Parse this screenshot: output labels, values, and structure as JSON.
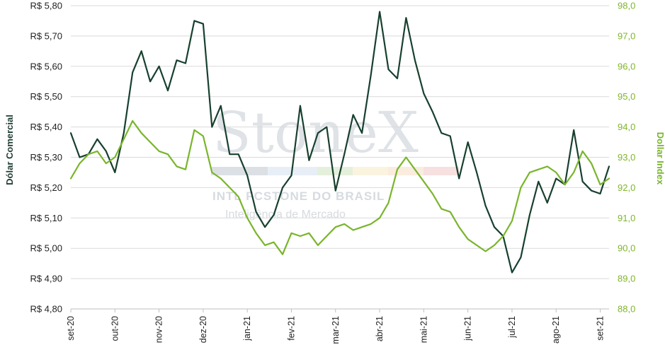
{
  "chart_data": {
    "type": "line",
    "xlabel": "",
    "x_ticks": [
      "set-20",
      "out-20",
      "nov-20",
      "dez-20",
      "jan-21",
      "fev-21",
      "mar-21",
      "abr-21",
      "mai-21",
      "jun-21",
      "jul-21",
      "ago-21",
      "set-21"
    ],
    "left_axis": {
      "label": "Dólar Comercial",
      "range": [
        4.8,
        5.8
      ],
      "tick_labels": [
        "R$ 4,80",
        "R$ 4,90",
        "R$ 5,00",
        "R$ 5,10",
        "R$ 5,20",
        "R$ 5,30",
        "R$ 5,40",
        "R$ 5,50",
        "R$ 5,60",
        "R$ 5,70",
        "R$ 5,80"
      ]
    },
    "right_axis": {
      "label": "Dollar Index",
      "range": [
        88.0,
        98.0
      ],
      "tick_labels": [
        "88,0",
        "89,0",
        "90,0",
        "91,0",
        "92,0",
        "93,0",
        "94,0",
        "95,0",
        "96,0",
        "97,0",
        "98,0"
      ]
    },
    "series": [
      {
        "name": "Dólar Comercial",
        "axis": "left",
        "color": "#17402f",
        "x": [
          0,
          0.2,
          0.4,
          0.6,
          0.8,
          1,
          1.2,
          1.4,
          1.6,
          1.8,
          2,
          2.2,
          2.4,
          2.6,
          2.8,
          3,
          3.2,
          3.4,
          3.6,
          3.8,
          4,
          4.2,
          4.4,
          4.6,
          4.8,
          5,
          5.2,
          5.4,
          5.6,
          5.8,
          6,
          6.2,
          6.4,
          6.6,
          6.8,
          7,
          7.2,
          7.4,
          7.6,
          7.8,
          8,
          8.2,
          8.4,
          8.6,
          8.8,
          9,
          9.2,
          9.4,
          9.6,
          9.8,
          10,
          10.2,
          10.4,
          10.6,
          10.8,
          11,
          11.2,
          11.4,
          11.6,
          11.8,
          12,
          12.2
        ],
        "values": [
          5.38,
          5.3,
          5.31,
          5.36,
          5.32,
          5.25,
          5.38,
          5.58,
          5.65,
          5.55,
          5.6,
          5.52,
          5.62,
          5.61,
          5.75,
          5.74,
          5.4,
          5.47,
          5.31,
          5.31,
          5.24,
          5.12,
          5.07,
          5.11,
          5.2,
          5.24,
          5.47,
          5.29,
          5.38,
          5.4,
          5.19,
          5.31,
          5.44,
          5.38,
          5.57,
          5.78,
          5.59,
          5.56,
          5.76,
          5.62,
          5.51,
          5.45,
          5.38,
          5.37,
          5.23,
          5.35,
          5.25,
          5.14,
          5.07,
          5.04,
          4.92,
          4.97,
          5.11,
          5.22,
          5.15,
          5.23,
          5.21,
          5.39,
          5.22,
          5.19,
          5.18,
          5.27
        ],
        "labels": []
      },
      {
        "name": "Dollar Index",
        "axis": "right",
        "color": "#79b52b",
        "x": [
          0,
          0.2,
          0.4,
          0.6,
          0.8,
          1,
          1.2,
          1.4,
          1.6,
          1.8,
          2,
          2.2,
          2.4,
          2.6,
          2.8,
          3,
          3.2,
          3.4,
          3.6,
          3.8,
          4,
          4.2,
          4.4,
          4.6,
          4.8,
          5,
          5.2,
          5.4,
          5.6,
          5.8,
          6,
          6.2,
          6.4,
          6.6,
          6.8,
          7,
          7.2,
          7.4,
          7.6,
          7.8,
          8,
          8.2,
          8.4,
          8.6,
          8.8,
          9,
          9.2,
          9.4,
          9.6,
          9.8,
          10,
          10.2,
          10.4,
          10.6,
          10.8,
          11,
          11.2,
          11.4,
          11.6,
          11.8,
          12,
          12.2
        ],
        "values": [
          92.3,
          92.8,
          93.1,
          93.2,
          92.8,
          93.0,
          93.6,
          94.2,
          93.8,
          93.5,
          93.2,
          93.1,
          92.7,
          92.6,
          93.9,
          93.7,
          92.5,
          92.3,
          92.0,
          91.7,
          91.0,
          90.5,
          90.1,
          90.2,
          89.8,
          90.5,
          90.4,
          90.5,
          90.1,
          90.4,
          90.7,
          90.8,
          90.6,
          90.7,
          90.8,
          91.0,
          91.5,
          92.6,
          93.0,
          92.6,
          92.2,
          91.8,
          91.3,
          91.2,
          90.7,
          90.3,
          90.1,
          89.9,
          90.1,
          90.4,
          90.9,
          92.0,
          92.5,
          92.6,
          92.7,
          92.5,
          92.1,
          92.5,
          93.2,
          92.8,
          92.1,
          92.3
        ],
        "labels": []
      }
    ],
    "colors": {
      "left_axis_text": "#1f3d32",
      "right_axis_text": "#79b52b",
      "gridline": "#d9d9d9"
    },
    "grid": true,
    "legend": "none"
  },
  "watermark": {
    "brand": "StoneX",
    "line1": "INTL FCSTONE DO BRASIL",
    "line2": "Inteligência de Mercado"
  }
}
